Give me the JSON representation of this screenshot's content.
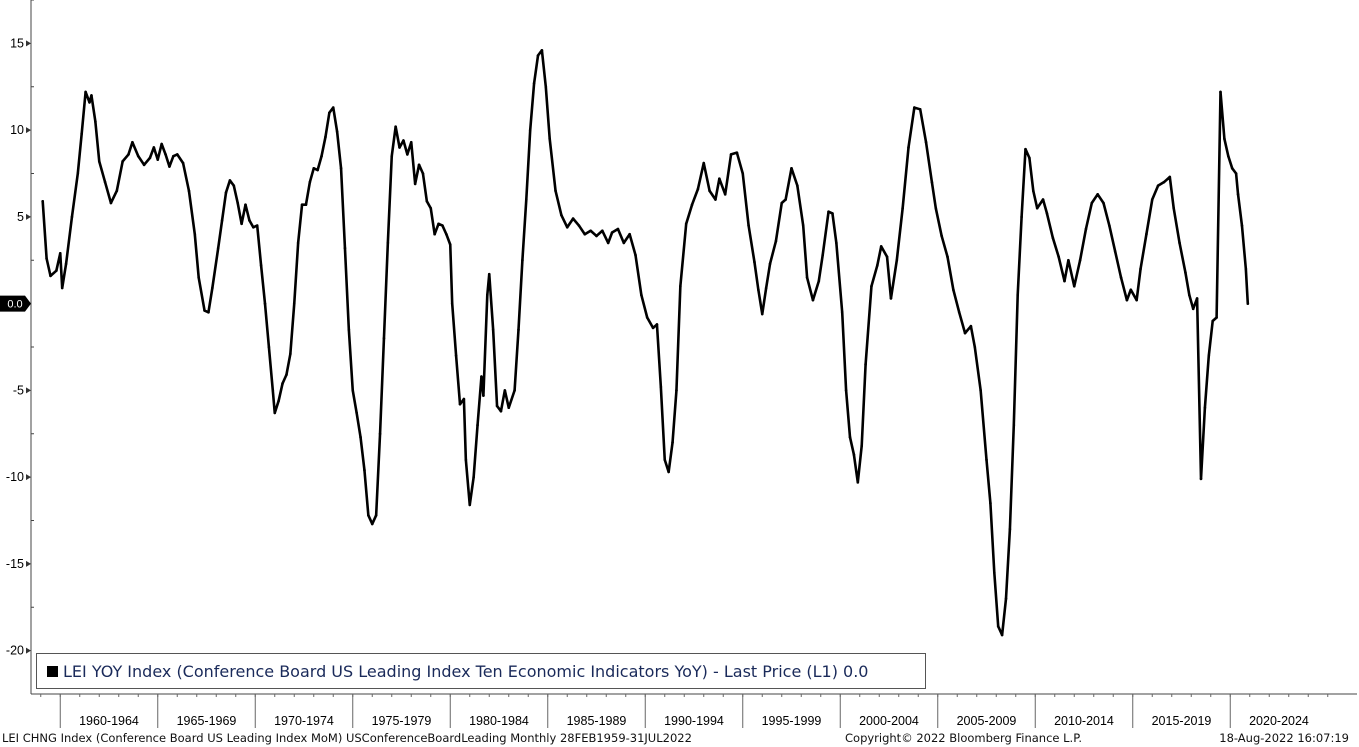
{
  "chart_data": {
    "type": "line",
    "ylim": [
      -22.5,
      17.5
    ],
    "y_ticks": [
      15,
      10,
      5,
      -5,
      -10,
      -15,
      -20
    ],
    "x_range": [
      1958.5,
      2026.5
    ],
    "x_groups": [
      "1960-1964",
      "1965-1969",
      "1970-1974",
      "1975-1979",
      "1980-1984",
      "1985-1989",
      "1990-1994",
      "1995-1999",
      "2000-2004",
      "2005-2009",
      "2010-2014",
      "2015-2019",
      "2020-2024"
    ],
    "grid": false,
    "legend_position": "bottom-left",
    "last_value_label": "0.0",
    "series": [
      {
        "name": "LEI YOY Index (Conference Board US Leading Index Ten Economic Indicators YoY) - Last Price (L1) 0.0",
        "color": "#000000",
        "points": [
          [
            1959.1,
            5.9
          ],
          [
            1959.3,
            2.6
          ],
          [
            1959.5,
            1.6
          ],
          [
            1959.8,
            1.9
          ],
          [
            1960.0,
            2.9
          ],
          [
            1960.1,
            0.9
          ],
          [
            1960.3,
            2.3
          ],
          [
            1960.6,
            5.0
          ],
          [
            1960.9,
            7.5
          ],
          [
            1961.1,
            9.8
          ],
          [
            1961.3,
            12.2
          ],
          [
            1961.5,
            11.6
          ],
          [
            1961.6,
            12.0
          ],
          [
            1961.8,
            10.5
          ],
          [
            1962.0,
            8.2
          ],
          [
            1962.3,
            7.0
          ],
          [
            1962.6,
            5.8
          ],
          [
            1962.9,
            6.5
          ],
          [
            1963.2,
            8.2
          ],
          [
            1963.5,
            8.6
          ],
          [
            1963.7,
            9.3
          ],
          [
            1964.0,
            8.5
          ],
          [
            1964.3,
            8.0
          ],
          [
            1964.6,
            8.4
          ],
          [
            1964.8,
            9.0
          ],
          [
            1965.0,
            8.3
          ],
          [
            1965.2,
            9.2
          ],
          [
            1965.4,
            8.6
          ],
          [
            1965.6,
            7.9
          ],
          [
            1965.8,
            8.5
          ],
          [
            1966.0,
            8.6
          ],
          [
            1966.3,
            8.1
          ],
          [
            1966.6,
            6.5
          ],
          [
            1966.9,
            4.0
          ],
          [
            1967.1,
            1.5
          ],
          [
            1967.4,
            -0.4
          ],
          [
            1967.6,
            -0.5
          ],
          [
            1967.8,
            0.9
          ],
          [
            1968.1,
            3.2
          ],
          [
            1968.3,
            4.8
          ],
          [
            1968.5,
            6.4
          ],
          [
            1968.7,
            7.1
          ],
          [
            1968.9,
            6.8
          ],
          [
            1969.1,
            5.8
          ],
          [
            1969.3,
            4.6
          ],
          [
            1969.5,
            5.7
          ],
          [
            1969.7,
            4.8
          ],
          [
            1969.9,
            4.4
          ],
          [
            1970.1,
            4.5
          ],
          [
            1970.3,
            2.2
          ],
          [
            1970.5,
            0.0
          ],
          [
            1970.7,
            -2.5
          ],
          [
            1970.9,
            -5.0
          ],
          [
            1971.0,
            -6.3
          ],
          [
            1971.2,
            -5.6
          ],
          [
            1971.4,
            -4.6
          ],
          [
            1971.6,
            -4.1
          ],
          [
            1971.8,
            -2.9
          ],
          [
            1972.0,
            0.0
          ],
          [
            1972.2,
            3.5
          ],
          [
            1972.4,
            5.7
          ],
          [
            1972.6,
            5.7
          ],
          [
            1972.8,
            7.0
          ],
          [
            1973.0,
            7.8
          ],
          [
            1973.2,
            7.7
          ],
          [
            1973.4,
            8.5
          ],
          [
            1973.6,
            9.6
          ],
          [
            1973.8,
            11.0
          ],
          [
            1974.0,
            11.3
          ],
          [
            1974.2,
            9.9
          ],
          [
            1974.4,
            7.8
          ],
          [
            1974.6,
            3.2
          ],
          [
            1974.8,
            -1.5
          ],
          [
            1975.0,
            -5.0
          ],
          [
            1975.2,
            -6.3
          ],
          [
            1975.4,
            -7.7
          ],
          [
            1975.6,
            -9.6
          ],
          [
            1975.8,
            -12.2
          ],
          [
            1976.0,
            -12.7
          ],
          [
            1976.2,
            -12.2
          ],
          [
            1976.4,
            -7.5
          ],
          [
            1976.6,
            -2.0
          ],
          [
            1976.8,
            3.5
          ],
          [
            1977.0,
            8.5
          ],
          [
            1977.2,
            10.2
          ],
          [
            1977.4,
            9.0
          ],
          [
            1977.6,
            9.4
          ],
          [
            1977.8,
            8.6
          ],
          [
            1978.0,
            9.3
          ],
          [
            1978.2,
            6.9
          ],
          [
            1978.4,
            8.0
          ],
          [
            1978.6,
            7.5
          ],
          [
            1978.8,
            5.9
          ],
          [
            1979.0,
            5.5
          ],
          [
            1979.2,
            4.0
          ],
          [
            1979.4,
            4.6
          ],
          [
            1979.6,
            4.5
          ],
          [
            1979.8,
            4.0
          ],
          [
            1980.0,
            3.4
          ],
          [
            1980.1,
            0.0
          ],
          [
            1980.3,
            -3.0
          ],
          [
            1980.5,
            -5.8
          ],
          [
            1980.7,
            -5.5
          ],
          [
            1980.8,
            -9.0
          ],
          [
            1981.0,
            -11.6
          ],
          [
            1981.2,
            -10.0
          ],
          [
            1981.4,
            -7.0
          ],
          [
            1981.6,
            -4.2
          ],
          [
            1981.7,
            -5.3
          ],
          [
            1981.9,
            0.5
          ],
          [
            1982.0,
            1.7
          ],
          [
            1982.2,
            -1.5
          ],
          [
            1982.4,
            -5.9
          ],
          [
            1982.6,
            -6.2
          ],
          [
            1982.8,
            -5.0
          ],
          [
            1983.0,
            -6.0
          ],
          [
            1983.3,
            -5.0
          ],
          [
            1983.5,
            -1.5
          ],
          [
            1983.7,
            2.5
          ],
          [
            1983.9,
            6.0
          ],
          [
            1984.1,
            10.0
          ],
          [
            1984.3,
            12.7
          ],
          [
            1984.5,
            14.3
          ],
          [
            1984.7,
            14.6
          ],
          [
            1984.9,
            12.5
          ],
          [
            1985.1,
            9.5
          ],
          [
            1985.4,
            6.5
          ],
          [
            1985.7,
            5.1
          ],
          [
            1986.0,
            4.4
          ],
          [
            1986.3,
            4.9
          ],
          [
            1986.6,
            4.5
          ],
          [
            1986.9,
            4.0
          ],
          [
            1987.2,
            4.2
          ],
          [
            1987.5,
            3.9
          ],
          [
            1987.8,
            4.2
          ],
          [
            1988.1,
            3.5
          ],
          [
            1988.3,
            4.1
          ],
          [
            1988.6,
            4.3
          ],
          [
            1988.9,
            3.5
          ],
          [
            1989.2,
            4.0
          ],
          [
            1989.5,
            2.8
          ],
          [
            1989.8,
            0.5
          ],
          [
            1990.1,
            -0.8
          ],
          [
            1990.4,
            -1.4
          ],
          [
            1990.6,
            -1.2
          ],
          [
            1990.8,
            -4.8
          ],
          [
            1991.0,
            -9.0
          ],
          [
            1991.2,
            -9.7
          ],
          [
            1991.4,
            -8.0
          ],
          [
            1991.6,
            -5.0
          ],
          [
            1991.8,
            1.0
          ],
          [
            1992.1,
            4.6
          ],
          [
            1992.4,
            5.7
          ],
          [
            1992.7,
            6.6
          ],
          [
            1993.0,
            8.1
          ],
          [
            1993.3,
            6.5
          ],
          [
            1993.6,
            6.0
          ],
          [
            1993.8,
            7.2
          ],
          [
            1994.1,
            6.3
          ],
          [
            1994.4,
            8.6
          ],
          [
            1994.7,
            8.7
          ],
          [
            1995.0,
            7.5
          ],
          [
            1995.3,
            4.5
          ],
          [
            1995.6,
            2.4
          ],
          [
            1995.8,
            0.8
          ],
          [
            1996.0,
            -0.6
          ],
          [
            1996.2,
            0.9
          ],
          [
            1996.4,
            2.3
          ],
          [
            1996.7,
            3.6
          ],
          [
            1997.0,
            5.8
          ],
          [
            1997.2,
            6.0
          ],
          [
            1997.5,
            7.8
          ],
          [
            1997.8,
            6.8
          ],
          [
            1998.1,
            4.5
          ],
          [
            1998.3,
            1.5
          ],
          [
            1998.6,
            0.2
          ],
          [
            1998.9,
            1.3
          ],
          [
            1999.1,
            2.8
          ],
          [
            1999.4,
            5.3
          ],
          [
            1999.6,
            5.2
          ],
          [
            1999.8,
            3.5
          ],
          [
            2000.1,
            -0.5
          ],
          [
            2000.3,
            -5.0
          ],
          [
            2000.5,
            -7.7
          ],
          [
            2000.7,
            -8.7
          ],
          [
            2000.9,
            -10.3
          ],
          [
            2001.1,
            -8.2
          ],
          [
            2001.3,
            -3.5
          ],
          [
            2001.6,
            1.0
          ],
          [
            2001.9,
            2.2
          ],
          [
            2002.1,
            3.3
          ],
          [
            2002.4,
            2.7
          ],
          [
            2002.6,
            0.3
          ],
          [
            2002.9,
            2.5
          ],
          [
            2003.2,
            5.5
          ],
          [
            2003.5,
            9.0
          ],
          [
            2003.8,
            11.3
          ],
          [
            2004.1,
            11.2
          ],
          [
            2004.4,
            9.3
          ],
          [
            2004.7,
            7.0
          ],
          [
            2004.9,
            5.5
          ],
          [
            2005.2,
            3.9
          ],
          [
            2005.5,
            2.7
          ],
          [
            2005.8,
            0.8
          ],
          [
            2006.1,
            -0.5
          ],
          [
            2006.4,
            -1.7
          ],
          [
            2006.7,
            -1.3
          ],
          [
            2006.9,
            -2.5
          ],
          [
            2007.2,
            -5.0
          ],
          [
            2007.5,
            -9.0
          ],
          [
            2007.7,
            -11.5
          ],
          [
            2007.9,
            -15.5
          ],
          [
            2008.1,
            -18.6
          ],
          [
            2008.3,
            -19.1
          ],
          [
            2008.5,
            -17.0
          ],
          [
            2008.7,
            -13.0
          ],
          [
            2008.9,
            -7.0
          ],
          [
            2009.1,
            0.5
          ],
          [
            2009.3,
            5.0
          ],
          [
            2009.5,
            8.9
          ],
          [
            2009.7,
            8.4
          ],
          [
            2009.9,
            6.5
          ],
          [
            2010.1,
            5.5
          ],
          [
            2010.4,
            6.0
          ],
          [
            2010.6,
            5.2
          ],
          [
            2010.9,
            3.8
          ],
          [
            2011.2,
            2.7
          ],
          [
            2011.5,
            1.3
          ],
          [
            2011.7,
            2.5
          ],
          [
            2012.0,
            1.0
          ],
          [
            2012.3,
            2.5
          ],
          [
            2012.6,
            4.3
          ],
          [
            2012.9,
            5.8
          ],
          [
            2013.2,
            6.3
          ],
          [
            2013.5,
            5.8
          ],
          [
            2013.8,
            4.5
          ],
          [
            2014.1,
            3.0
          ],
          [
            2014.4,
            1.5
          ],
          [
            2014.7,
            0.2
          ],
          [
            2014.9,
            0.8
          ],
          [
            2015.2,
            0.2
          ],
          [
            2015.4,
            2.0
          ],
          [
            2015.7,
            4.0
          ],
          [
            2016.0,
            6.0
          ],
          [
            2016.3,
            6.8
          ],
          [
            2016.6,
            7.0
          ],
          [
            2016.9,
            7.3
          ],
          [
            2017.1,
            5.5
          ],
          [
            2017.4,
            3.5
          ],
          [
            2017.7,
            1.8
          ],
          [
            2017.9,
            0.5
          ],
          [
            2018.1,
            -0.3
          ],
          [
            2018.3,
            0.3
          ],
          [
            2018.5,
            -10.1
          ],
          [
            2018.7,
            -6.0
          ],
          [
            2018.9,
            -3.0
          ],
          [
            2019.1,
            -1.0
          ],
          [
            2019.3,
            -0.8
          ],
          [
            2019.5,
            12.2
          ],
          [
            2019.7,
            9.5
          ],
          [
            2019.9,
            8.5
          ],
          [
            2020.1,
            7.8
          ],
          [
            2020.3,
            7.5
          ],
          [
            2020.4,
            6.3
          ],
          [
            2020.6,
            4.5
          ],
          [
            2020.8,
            2.0
          ],
          [
            2020.9,
            0.0
          ]
        ]
      }
    ]
  },
  "legend": {
    "label": "LEI YOY Index (Conference Board US Leading Index Ten Economic Indicators YoY) - Last Price (L1) 0.0"
  },
  "footer": {
    "source": "LEI CHNG Index (Conference Board US Leading Index MoM) USConferenceBoardLeading  Monthly 28FEB1959-31JUL2022",
    "copyright": "Copyright© 2022 Bloomberg Finance L.P.",
    "timestamp": "18-Aug-2022 16:07:19"
  }
}
